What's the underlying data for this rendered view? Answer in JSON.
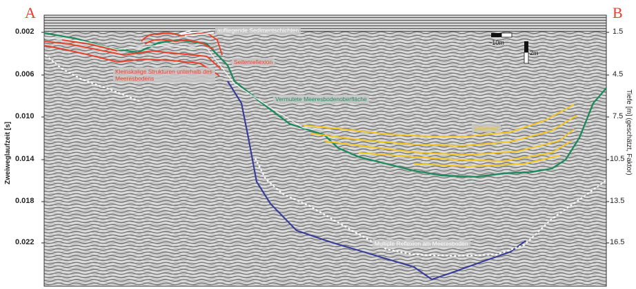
{
  "corners": {
    "left": "A",
    "right": "B"
  },
  "axes": {
    "left_title": "Zweiweglaufzeit [s]",
    "right_title": "Tiefe [m] (geschätzt, Faktor)",
    "left_ticks": [
      "0.002",
      "0.006",
      "0.010",
      "0.014",
      "0.018",
      "0.022"
    ],
    "right_ticks": [
      "1.5",
      "4.5",
      "7.5",
      "10.5",
      "13.5",
      "16.5"
    ]
  },
  "scale_bar": {
    "horizontal": "~10m",
    "vertical": "2m"
  },
  "labels": {
    "vegetation": "aufliegende Sedimentschichten",
    "artifacts": "Seitenreflexion",
    "small_structures": "Kleinskalige Strukturen unterhalb des Meeresbodens",
    "seafloor": "Vermutete Meeresbodenoberfläche",
    "sediment": "Sediment",
    "multiple": "Multiple Reflexion am Meeresboden"
  },
  "colors": {
    "seafloor": "#1e8a5e",
    "sediment": "#f3c623",
    "multiple": "#3a3c9a",
    "red": "#e8432b",
    "corner_text": "#e0422a"
  }
}
